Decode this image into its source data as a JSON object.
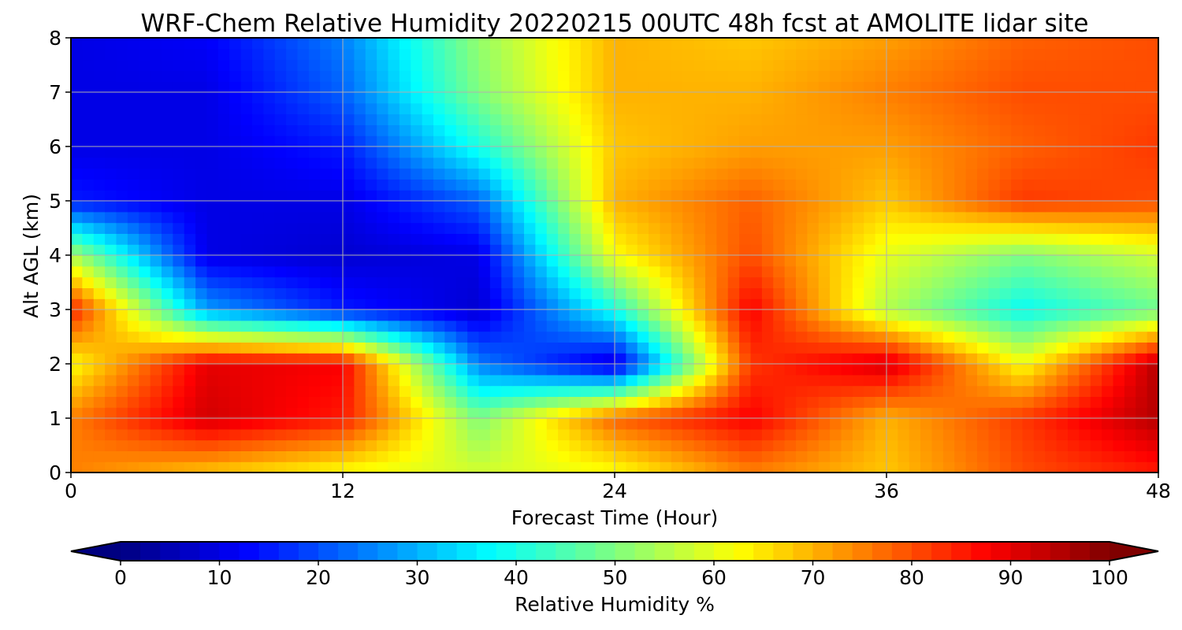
{
  "chart_data": {
    "type": "heatmap",
    "title": "WRF-Chem Relative Humidity 20220215 00UTC 48h fcst at AMOLITE lidar site",
    "xlabel": "Forecast Time (Hour)",
    "ylabel": "Alt AGL (km)",
    "xlim": [
      0,
      48
    ],
    "ylim": [
      0,
      8
    ],
    "xticks": [
      "0",
      "12",
      "24",
      "36",
      "48"
    ],
    "yticks": [
      "0",
      "1",
      "2",
      "3",
      "4",
      "5",
      "6",
      "7",
      "8"
    ],
    "grid": true,
    "colorbar": {
      "label": "Relative Humidity %",
      "range": [
        0,
        100
      ],
      "ticks": [
        "0",
        "10",
        "20",
        "30",
        "40",
        "50",
        "60",
        "70",
        "80",
        "90",
        "100"
      ],
      "colormap": "jet",
      "extend": "both"
    },
    "x": [
      0,
      6,
      12,
      18,
      24,
      30,
      36,
      42,
      48
    ],
    "y": [
      0,
      1,
      2,
      3,
      4,
      5,
      6,
      7,
      8
    ],
    "z": [
      [
        75,
        68,
        62,
        58,
        62,
        75,
        68,
        80,
        85
      ],
      [
        75,
        92,
        85,
        50,
        78,
        88,
        70,
        82,
        95
      ],
      [
        62,
        90,
        88,
        25,
        8,
        82,
        92,
        62,
        95
      ],
      [
        85,
        28,
        15,
        8,
        40,
        88,
        55,
        38,
        48
      ],
      [
        55,
        10,
        8,
        10,
        62,
        80,
        60,
        50,
        58
      ],
      [
        15,
        10,
        10,
        22,
        70,
        78,
        68,
        82,
        80
      ],
      [
        10,
        10,
        15,
        40,
        68,
        72,
        72,
        78,
        82
      ],
      [
        10,
        10,
        22,
        50,
        70,
        70,
        75,
        80,
        80
      ],
      [
        10,
        12,
        25,
        52,
        70,
        68,
        72,
        78,
        80
      ]
    ]
  }
}
